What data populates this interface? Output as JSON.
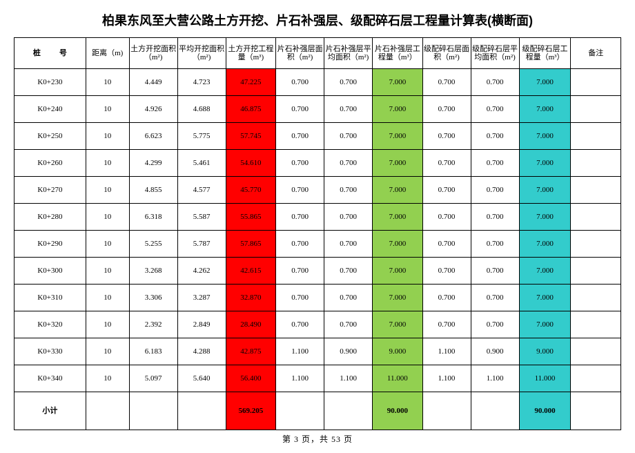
{
  "title": "柏果东风至大营公路土方开挖、片石补强层、级配碎石层工程量计算表(横断面)",
  "footer": "第 3 页，共 53 页",
  "colors": {
    "red": "#ff0000",
    "green": "#92d050",
    "cyan": "#33cccc"
  },
  "columns": [
    "桩　号",
    "距离（m)",
    "土方开挖面积（m²)",
    "平均开挖面积（m²)",
    "土方开挖工程量（m³)",
    "片石补强层面积（m²)",
    "片石补强层平均面积（m²)",
    "片石补强层工程量（m³）",
    "级配碎石层面积（m²)",
    "级配碎石层平均面积（m²)",
    "级配碎石层工程量（m³）",
    "备注"
  ],
  "rows": [
    {
      "pile": "K0+230",
      "dist": "10",
      "a": "4.449",
      "pa": "4.723",
      "q": "47.225",
      "ba": "0.700",
      "bpa": "0.700",
      "bq": "7.000",
      "ca": "0.700",
      "cpa": "0.700",
      "cq": "7.000",
      "nt": ""
    },
    {
      "pile": "K0+240",
      "dist": "10",
      "a": "4.926",
      "pa": "4.688",
      "q": "46.875",
      "ba": "0.700",
      "bpa": "0.700",
      "bq": "7.000",
      "ca": "0.700",
      "cpa": "0.700",
      "cq": "7.000",
      "nt": ""
    },
    {
      "pile": "K0+250",
      "dist": "10",
      "a": "6.623",
      "pa": "5.775",
      "q": "57.745",
      "ba": "0.700",
      "bpa": "0.700",
      "bq": "7.000",
      "ca": "0.700",
      "cpa": "0.700",
      "cq": "7.000",
      "nt": ""
    },
    {
      "pile": "K0+260",
      "dist": "10",
      "a": "4.299",
      "pa": "5.461",
      "q": "54.610",
      "ba": "0.700",
      "bpa": "0.700",
      "bq": "7.000",
      "ca": "0.700",
      "cpa": "0.700",
      "cq": "7.000",
      "nt": ""
    },
    {
      "pile": "K0+270",
      "dist": "10",
      "a": "4.855",
      "pa": "4.577",
      "q": "45.770",
      "ba": "0.700",
      "bpa": "0.700",
      "bq": "7.000",
      "ca": "0.700",
      "cpa": "0.700",
      "cq": "7.000",
      "nt": ""
    },
    {
      "pile": "K0+280",
      "dist": "10",
      "a": "6.318",
      "pa": "5.587",
      "q": "55.865",
      "ba": "0.700",
      "bpa": "0.700",
      "bq": "7.000",
      "ca": "0.700",
      "cpa": "0.700",
      "cq": "7.000",
      "nt": ""
    },
    {
      "pile": "K0+290",
      "dist": "10",
      "a": "5.255",
      "pa": "5.787",
      "q": "57.865",
      "ba": "0.700",
      "bpa": "0.700",
      "bq": "7.000",
      "ca": "0.700",
      "cpa": "0.700",
      "cq": "7.000",
      "nt": ""
    },
    {
      "pile": "K0+300",
      "dist": "10",
      "a": "3.268",
      "pa": "4.262",
      "q": "42.615",
      "ba": "0.700",
      "bpa": "0.700",
      "bq": "7.000",
      "ca": "0.700",
      "cpa": "0.700",
      "cq": "7.000",
      "nt": ""
    },
    {
      "pile": "K0+310",
      "dist": "10",
      "a": "3.306",
      "pa": "3.287",
      "q": "32.870",
      "ba": "0.700",
      "bpa": "0.700",
      "bq": "7.000",
      "ca": "0.700",
      "cpa": "0.700",
      "cq": "7.000",
      "nt": ""
    },
    {
      "pile": "K0+320",
      "dist": "10",
      "a": "2.392",
      "pa": "2.849",
      "q": "28.490",
      "ba": "0.700",
      "bpa": "0.700",
      "bq": "7.000",
      "ca": "0.700",
      "cpa": "0.700",
      "cq": "7.000",
      "nt": ""
    },
    {
      "pile": "K0+330",
      "dist": "10",
      "a": "6.183",
      "pa": "4.288",
      "q": "42.875",
      "ba": "1.100",
      "bpa": "0.900",
      "bq": "9.000",
      "ca": "1.100",
      "cpa": "0.900",
      "cq": "9.000",
      "nt": ""
    },
    {
      "pile": "K0+340",
      "dist": "10",
      "a": "5.097",
      "pa": "5.640",
      "q": "56.400",
      "ba": "1.100",
      "bpa": "1.100",
      "bq": "11.000",
      "ca": "1.100",
      "cpa": "1.100",
      "cq": "11.000",
      "nt": ""
    }
  ],
  "subtotal": {
    "label": "小计",
    "q": "569.205",
    "bq": "90.000",
    "cq": "90.000"
  }
}
